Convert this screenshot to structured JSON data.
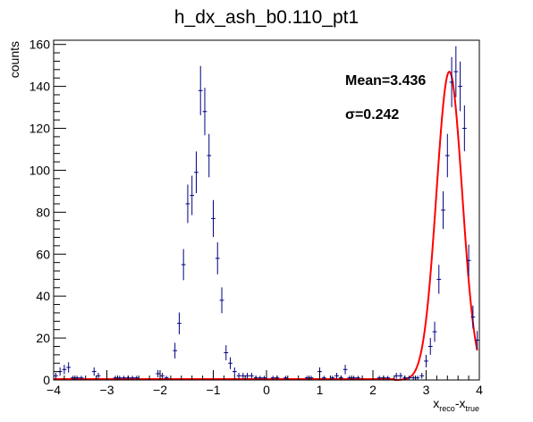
{
  "chart_data": {
    "type": "scatter",
    "title": "h_dx_ash_b0.110_pt1",
    "ylabel": "counts",
    "xlabel": {
      "main": "x",
      "sub1": "reco",
      "mid": "-x",
      "sub2": "true"
    },
    "xlim": [
      -4,
      4
    ],
    "ylim": [
      0,
      162
    ],
    "x_ticks": [
      -4,
      -3,
      -2,
      -1,
      0,
      1,
      2,
      3,
      4
    ],
    "y_ticks": [
      0,
      20,
      40,
      60,
      80,
      100,
      120,
      140,
      160
    ],
    "grid": false,
    "legend": "none",
    "annotations": {
      "mean": "Mean=3.436",
      "sigma": "σ=0.242"
    },
    "colors": {
      "data": "#000080",
      "fit": "#ff0000",
      "axis": "#000000"
    },
    "bin_width": 0.08,
    "series": [
      {
        "kind": "errorbar-points",
        "x": [
          -3.96,
          -3.88,
          -3.8,
          -3.72,
          -3.64,
          -3.56,
          -3.48,
          -3.24,
          -3.16,
          -2.84,
          -2.76,
          -2.68,
          -2.6,
          -2.52,
          -2.44,
          -2.04,
          -1.96,
          -1.88,
          -1.72,
          -1.64,
          -1.56,
          -1.48,
          -1.4,
          -1.32,
          -1.24,
          -1.16,
          -1.08,
          -1.0,
          -0.92,
          -0.84,
          -0.76,
          -0.68,
          -0.6,
          -0.52,
          -0.44,
          -0.36,
          -0.28,
          -0.2,
          -0.12,
          -0.04,
          0.12,
          0.2,
          0.36,
          0.76,
          0.84,
          1.0,
          1.08,
          1.24,
          1.32,
          1.4,
          1.48,
          1.56,
          1.64,
          1.72,
          2.12,
          2.2,
          2.28,
          2.44,
          2.52,
          2.6,
          2.68,
          2.76,
          2.84,
          2.92,
          3.0,
          3.08,
          3.16,
          3.24,
          3.32,
          3.4,
          3.48,
          3.56,
          3.64,
          3.72,
          3.8,
          3.88,
          3.96
        ],
        "y": [
          2,
          4,
          5,
          6,
          1,
          1,
          1,
          4,
          2,
          1,
          1,
          1,
          1,
          1,
          1,
          3,
          2,
          1,
          14,
          27,
          55,
          84,
          88,
          99,
          138,
          128,
          107,
          77,
          58,
          38,
          13,
          8,
          4,
          2,
          2,
          2,
          2,
          1,
          1,
          1,
          1,
          1,
          1,
          1,
          1,
          4,
          1,
          1,
          2,
          1,
          5,
          1,
          1,
          1,
          1,
          1,
          1,
          2,
          2,
          1,
          1,
          1,
          1,
          2,
          9,
          16,
          23,
          48,
          81,
          107,
          142,
          147,
          140,
          120,
          57,
          30,
          19
        ]
      },
      {
        "kind": "gaussian-fit",
        "name": "",
        "mean": 3.436,
        "sigma": 0.242,
        "amplitude": 147,
        "x_range": [
          2.4,
          3.96
        ]
      }
    ]
  }
}
